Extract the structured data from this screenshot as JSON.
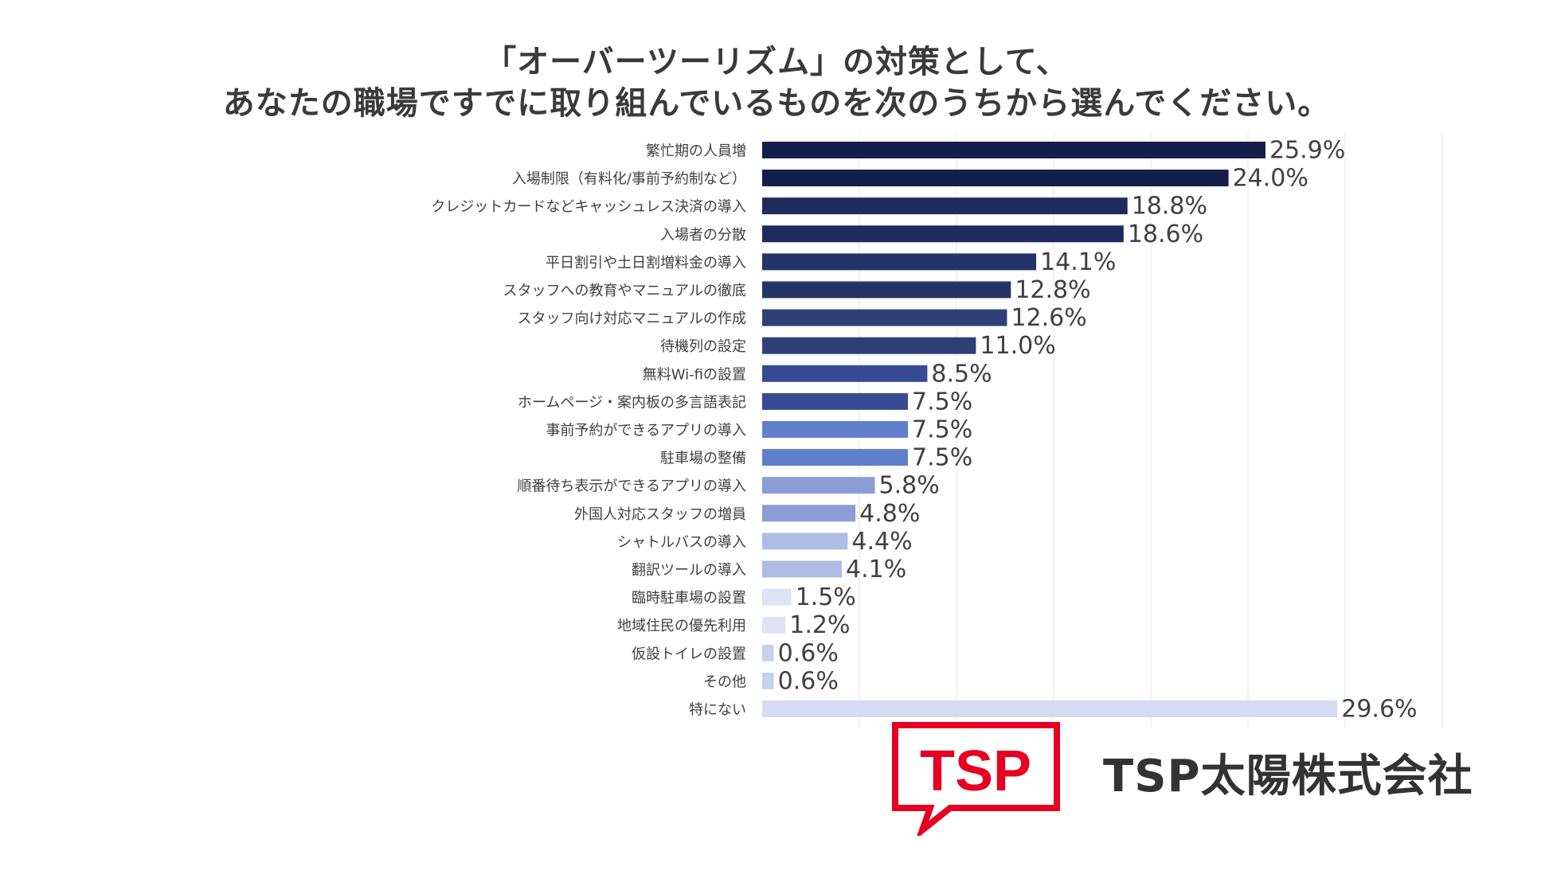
{
  "chart_data": {
    "type": "bar",
    "orientation": "horizontal",
    "title": [
      "「オーバーツーリズム」の対策として、",
      "あなたの職場ですでに取り組んでいるものを次のうちから選んでください。"
    ],
    "categories": [
      "繁忙期の人員増",
      "入場制限（有料化/事前予約制など）",
      "クレジットカードなどキャッシュレス決済の導入",
      "入場者の分散",
      "平日割引や土日割増料金の導入",
      "スタッフへの教育やマニュアルの徹底",
      "スタッフ向け対応マニュアルの作成",
      "待機列の設定",
      "無料Wi-fiの設置",
      "ホームページ・案内板の多言語表記",
      "事前予約ができるアプリの導入",
      "駐車場の整備",
      "順番待ち表示ができるアプリの導入",
      "外国人対応スタッフの増員",
      "シャトルバスの導入",
      "翻訳ツールの導入",
      "臨時駐車場の設置",
      "地域住民の優先利用",
      "仮設トイレの設置",
      "その他",
      "特にない"
    ],
    "values": [
      25.9,
      24.0,
      18.8,
      18.6,
      14.1,
      12.8,
      12.6,
      11.0,
      8.5,
      7.5,
      7.5,
      7.5,
      5.8,
      4.8,
      4.4,
      4.1,
      1.5,
      1.2,
      0.6,
      0.6,
      29.6
    ],
    "value_labels": [
      "25.9%",
      "24.0%",
      "18.8%",
      "18.6%",
      "14.1%",
      "12.8%",
      "12.6%",
      "11.0%",
      "8.5%",
      "7.5%",
      "7.5%",
      "7.5%",
      "5.8%",
      "4.8%",
      "4.4%",
      "4.1%",
      "1.5%",
      "1.2%",
      "0.6%",
      "0.6%",
      "29.6%"
    ],
    "bar_colors": [
      "#151d4a",
      "#151d4a",
      "#1f2b5c",
      "#1f2b5c",
      "#253468",
      "#253468",
      "#2e4075",
      "#2e4075",
      "#364b94",
      "#364b94",
      "#6180cb",
      "#6180cb",
      "#8b9dd4",
      "#8b9dd4",
      "#afbce3",
      "#afbce3",
      "#dde3f4",
      "#dde3f4",
      "#c7d1ee",
      "#c7d1ee",
      "#d5dcf1"
    ],
    "xlim": [
      0,
      35
    ],
    "xtick_step": 5,
    "grid": true,
    "unit": "%"
  },
  "logo": {
    "text": "TSP",
    "color": "#e60021"
  },
  "company_name": "TSP太陽株式会社"
}
